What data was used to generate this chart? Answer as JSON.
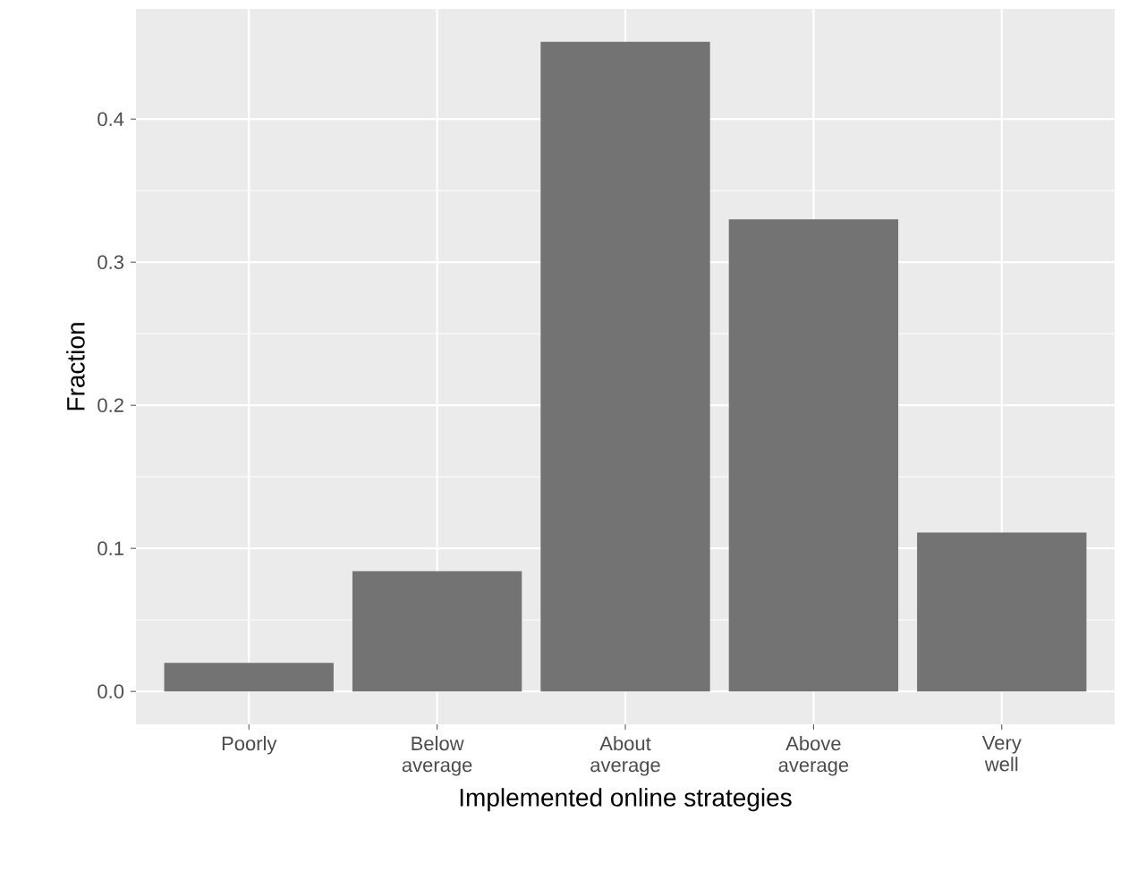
{
  "chart_data": {
    "type": "bar",
    "xlabel": "Implemented online strategies",
    "ylabel": "Fraction",
    "categories": [
      "Poorly",
      "Below average",
      "About average",
      "Above average",
      "Very well"
    ],
    "values": [
      0.02,
      0.084,
      0.454,
      0.33,
      0.111
    ],
    "color": "#737373",
    "ylim": [
      -0.023,
      0.477
    ],
    "yticks": [
      {
        "value": 0,
        "label": "0.0"
      },
      {
        "value": 0.1,
        "label": "0.1"
      },
      {
        "value": 0.2,
        "label": "0.2"
      },
      {
        "value": 0.3,
        "label": "0.3"
      },
      {
        "value": 0.4,
        "label": "0.4"
      }
    ],
    "grid": true
  }
}
